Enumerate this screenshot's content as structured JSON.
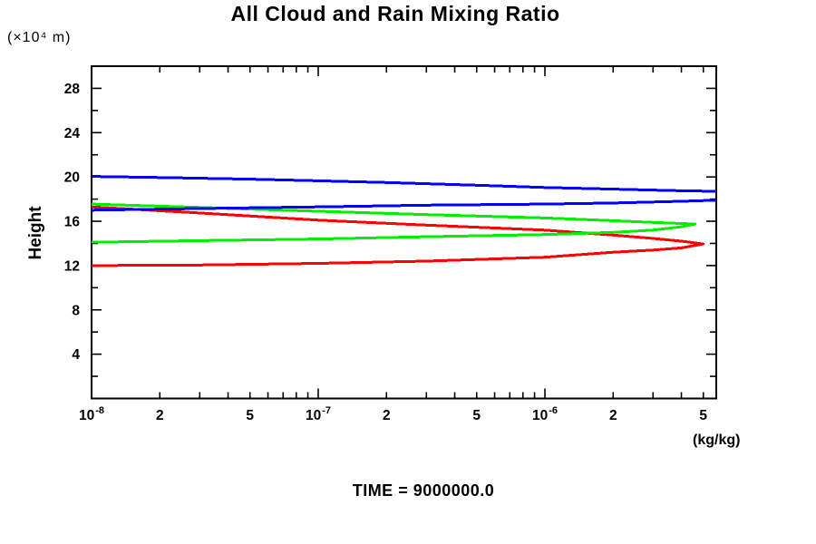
{
  "title": "All Cloud and Rain Mixing Ratio",
  "footer": "TIME = 9000000.0",
  "chart_data": {
    "type": "line",
    "title": "All Cloud and Rain Mixing Ratio",
    "subtitle": "TIME = 9000000.0",
    "grid": false,
    "legend": "none",
    "x_axis": {
      "scale": "log",
      "min": 1e-08,
      "max": 5.7e-06,
      "unit_label": "(kg/kg)",
      "labeled_ticks": [
        {
          "value": 1e-08,
          "label": "10^-8"
        },
        {
          "value": 2e-08,
          "label": "2"
        },
        {
          "value": 5e-08,
          "label": "5"
        },
        {
          "value": 1e-07,
          "label": "10^-7"
        },
        {
          "value": 2e-07,
          "label": "2"
        },
        {
          "value": 5e-07,
          "label": "5"
        },
        {
          "value": 1e-06,
          "label": "10^-6"
        },
        {
          "value": 2e-06,
          "label": "2"
        },
        {
          "value": 5e-06,
          "label": "5"
        }
      ],
      "minor_tick_mantissas": [
        2,
        3,
        4,
        5,
        6,
        7,
        8,
        9
      ]
    },
    "y_axis": {
      "min": 0,
      "max": 30,
      "axis_label": "Height",
      "unit_label": "(×10⁴ m)",
      "major_ticks": [
        4,
        8,
        12,
        16,
        20,
        24,
        28
      ],
      "minor_ticks": [
        2,
        6,
        10,
        14,
        18,
        22,
        26
      ]
    },
    "series": [
      {
        "name": "red",
        "color": "#ff0000",
        "clipped_at_right": false,
        "segments": [
          [
            [
              1e-08,
              17.3
            ],
            [
              3e-08,
              16.75
            ],
            [
              1e-07,
              16.1
            ],
            [
              3e-07,
              15.65
            ],
            [
              1e-06,
              15.2
            ],
            [
              2e-06,
              14.75
            ],
            [
              3e-06,
              14.45
            ],
            [
              4e-06,
              14.2
            ],
            [
              5e-06,
              13.95
            ],
            [
              4e-06,
              13.6
            ],
            [
              3e-06,
              13.4
            ],
            [
              2e-06,
              13.2
            ],
            [
              1e-06,
              12.75
            ],
            [
              3e-07,
              12.4
            ],
            [
              1e-07,
              12.2
            ],
            [
              3e-08,
              12.05
            ],
            [
              1e-08,
              12.0
            ]
          ]
        ]
      },
      {
        "name": "green",
        "color": "#00ee00",
        "clipped_at_right": false,
        "segments": [
          [
            [
              1e-08,
              17.55
            ],
            [
              3e-08,
              17.25
            ],
            [
              1e-07,
              16.9
            ],
            [
              3e-07,
              16.6
            ],
            [
              1e-06,
              16.3
            ],
            [
              2e-06,
              16.05
            ],
            [
              3e-06,
              15.9
            ],
            [
              4e-06,
              15.8
            ],
            [
              4.6e-06,
              15.75
            ],
            [
              4e-06,
              15.5
            ],
            [
              3e-06,
              15.2
            ],
            [
              2e-06,
              15.0
            ],
            [
              1e-06,
              14.8
            ],
            [
              3e-07,
              14.6
            ],
            [
              1e-07,
              14.4
            ],
            [
              3e-08,
              14.25
            ],
            [
              1e-08,
              14.1
            ]
          ]
        ]
      },
      {
        "name": "blue",
        "color": "#0000ff",
        "clipped_at_right": true,
        "segments": [
          [
            [
              1e-08,
              20.05
            ],
            [
              2e-08,
              19.95
            ],
            [
              5e-08,
              19.8
            ],
            [
              1e-07,
              19.65
            ],
            [
              2e-07,
              19.5
            ],
            [
              5e-07,
              19.25
            ],
            [
              1e-06,
              19.05
            ],
            [
              2e-06,
              18.9
            ],
            [
              4e-06,
              18.75
            ],
            [
              5.7e-06,
              18.7
            ]
          ],
          [
            [
              1e-08,
              17.0
            ],
            [
              3e-08,
              17.15
            ],
            [
              1e-07,
              17.3
            ],
            [
              3e-07,
              17.45
            ],
            [
              1e-06,
              17.55
            ],
            [
              2e-06,
              17.65
            ],
            [
              4e-06,
              17.8
            ],
            [
              5.7e-06,
              17.9
            ]
          ]
        ]
      }
    ]
  }
}
